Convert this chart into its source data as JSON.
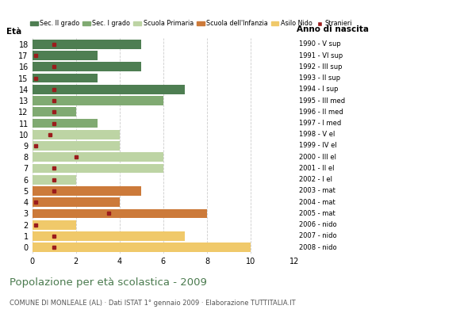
{
  "ages": [
    18,
    17,
    16,
    15,
    14,
    13,
    12,
    11,
    10,
    9,
    8,
    7,
    6,
    5,
    4,
    3,
    2,
    1,
    0
  ],
  "bar_values": [
    5,
    3,
    5,
    3,
    7,
    6,
    2,
    3,
    4,
    4,
    6,
    6,
    2,
    5,
    4,
    8,
    2,
    7,
    10
  ],
  "stranieri_x": [
    1,
    0.15,
    1,
    0.15,
    1,
    1,
    1,
    1,
    0.8,
    0.15,
    2,
    1,
    1,
    1,
    0.15,
    3.5,
    0.15,
    1,
    1
  ],
  "colors": {
    "Sec. II grado": "#4e7e52",
    "Sec. I grado": "#80aa72",
    "Scuola Primaria": "#bdd4a4",
    "Scuola dell'Infanzia": "#cc7a3a",
    "Asilo Nido": "#f0c96a",
    "Stranieri": "#9b1c1c"
  },
  "age_category": {
    "18": "Sec. II grado",
    "17": "Sec. II grado",
    "16": "Sec. II grado",
    "15": "Sec. II grado",
    "14": "Sec. II grado",
    "13": "Sec. I grado",
    "12": "Sec. I grado",
    "11": "Sec. I grado",
    "10": "Scuola Primaria",
    "9": "Scuola Primaria",
    "8": "Scuola Primaria",
    "7": "Scuola Primaria",
    "6": "Scuola Primaria",
    "5": "Scuola dell'Infanzia",
    "4": "Scuola dell'Infanzia",
    "3": "Scuola dell'Infanzia",
    "2": "Asilo Nido",
    "1": "Asilo Nido",
    "0": "Asilo Nido"
  },
  "right_labels": {
    "18": "1990 - V sup",
    "17": "1991 - VI sup",
    "16": "1992 - III sup",
    "15": "1993 - II sup",
    "14": "1994 - I sup",
    "13": "1995 - III med",
    "12": "1996 - II med",
    "11": "1997 - I med",
    "10": "1998 - V el",
    "9": "1999 - IV el",
    "8": "2000 - III el",
    "7": "2001 - II el",
    "6": "2002 - I el",
    "5": "2003 - mat",
    "4": "2004 - mat",
    "3": "2005 - mat",
    "2": "2006 - nido",
    "1": "2007 - nido",
    "0": "2008 - nido"
  },
  "xlim": [
    0,
    12
  ],
  "xticks": [
    0,
    2,
    4,
    6,
    8,
    10,
    12
  ],
  "ylim": [
    -0.55,
    18.55
  ],
  "bar_height": 0.82,
  "eta_label": "Età",
  "anno_label": "Anno di nascita",
  "title": "Popolazione per età scolastica - 2009",
  "subtitle": "COMUNE DI MONLEALE (AL) · Dati ISTAT 1° gennaio 2009 · Elaborazione TUTTITALIA.IT",
  "title_color": "#4a7a4e",
  "subtitle_color": "#555555",
  "grid_color": "#cccccc",
  "bg_color": "#ffffff"
}
